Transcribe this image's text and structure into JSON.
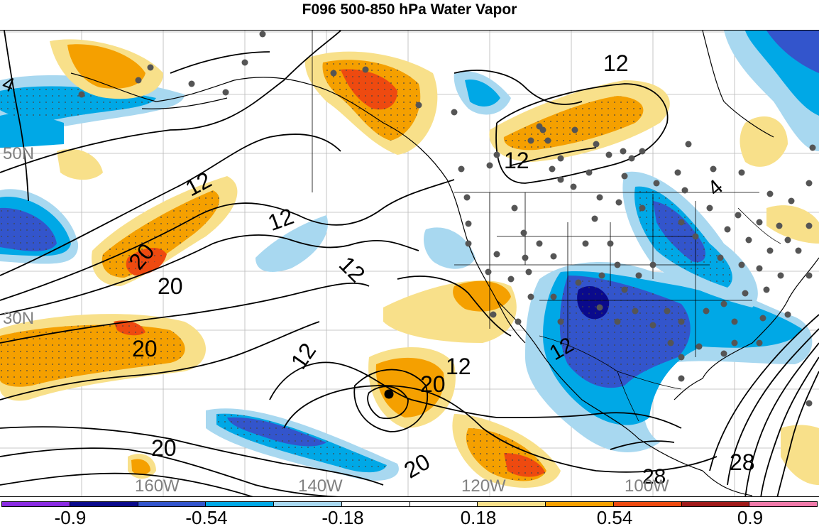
{
  "title": "F096 500-850 hPa Water Vapor",
  "lat_labels": [
    "50N",
    "30N"
  ],
  "lon_labels": [
    "160W",
    "140W",
    "120W",
    "100W"
  ],
  "contour_labels": [
    "4",
    "12",
    "12",
    "12",
    "12",
    "12",
    "12",
    "20",
    "20",
    "20",
    "20",
    "20",
    "20",
    "28",
    "28",
    "4",
    "12",
    "12"
  ],
  "colorbar": {
    "colors": [
      "#8a2be2",
      "#0a0a8c",
      "#3355cc",
      "#00a8e6",
      "#a8d8f0",
      "#ffffff",
      "#ffffff",
      "#f8e08a",
      "#f5a000",
      "#ee4a10",
      "#a01a1a",
      "#f07aaa"
    ],
    "ticks": [
      "-0.9",
      "-0.54",
      "-0.18",
      "0.18",
      "0.54",
      "0.9"
    ]
  }
}
